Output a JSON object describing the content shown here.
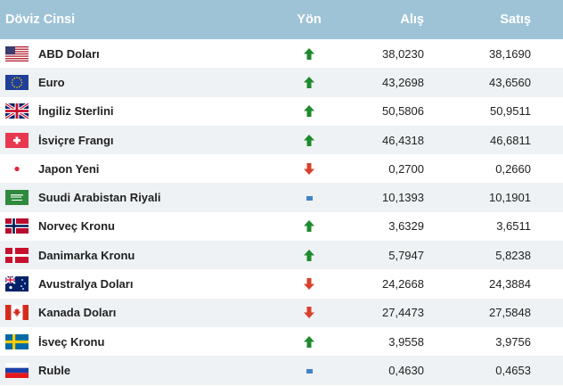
{
  "header": {
    "currency": "Döviz Cinsi",
    "direction": "Yön",
    "buy": "Alış",
    "sell": "Satış"
  },
  "colors": {
    "header_bg": "#9ec3d7",
    "up": "#1e8a2d",
    "down": "#d9412b",
    "flat": "#3f84c9"
  },
  "rows": [
    {
      "flag": "usa-flag",
      "name": "ABD Doları",
      "dir": "up",
      "buy": "38,0230",
      "sell": "38,1690"
    },
    {
      "flag": "eu-flag",
      "name": "Euro",
      "dir": "up",
      "buy": "43,2698",
      "sell": "43,6560"
    },
    {
      "flag": "uk-flag",
      "name": "İngiliz Sterlini",
      "dir": "up",
      "buy": "50,5806",
      "sell": "50,9511"
    },
    {
      "flag": "swiss-flag",
      "name": "İsviçre Frangı",
      "dir": "up",
      "buy": "46,4318",
      "sell": "46,6811"
    },
    {
      "flag": "japan-flag",
      "name": "Japon Yeni",
      "dir": "down",
      "buy": "0,2700",
      "sell": "0,2660"
    },
    {
      "flag": "saudi-flag",
      "name": "Suudi Arabistan Riyali",
      "dir": "flat",
      "buy": "10,1393",
      "sell": "10,1901"
    },
    {
      "flag": "norway-flag",
      "name": "Norveç Kronu",
      "dir": "up",
      "buy": "3,6329",
      "sell": "3,6511"
    },
    {
      "flag": "denmark-flag",
      "name": "Danimarka Kronu",
      "dir": "up",
      "buy": "5,7947",
      "sell": "5,8238"
    },
    {
      "flag": "australia-flag",
      "name": "Avustralya Doları",
      "dir": "down",
      "buy": "24,2668",
      "sell": "24,3884"
    },
    {
      "flag": "canada-flag",
      "name": "Kanada Doları",
      "dir": "down",
      "buy": "27,4473",
      "sell": "27,5848"
    },
    {
      "flag": "sweden-flag",
      "name": "İsveç Kronu",
      "dir": "up",
      "buy": "3,9558",
      "sell": "3,9756"
    },
    {
      "flag": "russia-flag",
      "name": "Ruble",
      "dir": "flat",
      "buy": "0,4630",
      "sell": "0,4653"
    }
  ]
}
